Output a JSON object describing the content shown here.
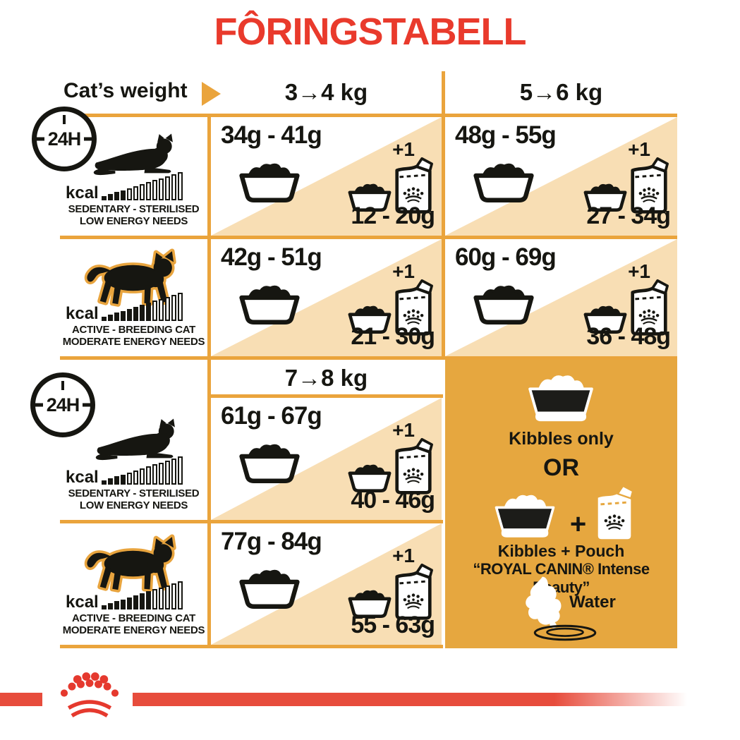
{
  "title": "FÔRINGSTABELL",
  "header": {
    "label": "Cat’s weight",
    "cols": [
      "3→4 kg",
      "5→6 kg",
      "7→8 kg"
    ]
  },
  "clock_label": "24H",
  "profiles": {
    "sedentary": {
      "kcal": "kcal",
      "line1": "SEDENTARY - STERILISED",
      "line2": "LOW ENERGY NEEDS",
      "bars": {
        "total": 13,
        "filled": 4
      }
    },
    "active": {
      "kcal": "kcal",
      "line1": "ACTIVE - BREEDING CAT",
      "line2": "MODERATE ENERGY NEEDS",
      "bars": {
        "total": 13,
        "filled": 8
      }
    }
  },
  "cells": {
    "r1c1": {
      "kibbles": "34g - 41g",
      "plus": "+1",
      "mix": "12 - 20g"
    },
    "r1c2": {
      "kibbles": "48g - 55g",
      "plus": "+1",
      "mix": "27 - 34g"
    },
    "r2c1": {
      "kibbles": "42g - 51g",
      "plus": "+1",
      "mix": "21 - 30g"
    },
    "r2c2": {
      "kibbles": "60g - 69g",
      "plus": "+1",
      "mix": "36 - 48g"
    },
    "r3c1": {
      "kibbles": "61g - 67g",
      "plus": "+1",
      "mix": "40 - 46g"
    },
    "r4c1": {
      "kibbles": "77g - 84g",
      "plus": "+1",
      "mix": "55 - 63g"
    }
  },
  "panel": {
    "kibbles_only": "Kibbles only",
    "or": "OR",
    "plus": "+",
    "mix_line1": "Kibbles + Pouch",
    "mix_line2": "“ROYAL CANIN® Intense Beauty”",
    "water": "Water"
  },
  "colors": {
    "red": "#e93a2c",
    "gold_line": "#eaa43c",
    "tan_fill": "#f8deb4",
    "panel_gold": "#e6a73f",
    "ink": "#161611"
  },
  "chart_data": {
    "type": "table",
    "title": "FÔRINGSTABELL",
    "col_headers": [
      "3→4 kg",
      "5→6 kg",
      "7→8 kg"
    ],
    "row_headers": [
      "SEDENTARY - STERILISED / LOW ENERGY NEEDS",
      "ACTIVE - BREEDING CAT / MODERATE ENERGY NEEDS"
    ],
    "kibbles_only_per_24h": [
      [
        "34g - 41g",
        "48g - 55g",
        "61g - 67g"
      ],
      [
        "42g - 51g",
        "60g - 69g",
        "77g - 84g"
      ]
    ],
    "kibbles_plus_1_pouch_per_24h": [
      [
        "12 - 20g",
        "27 - 34g",
        "40 - 46g"
      ],
      [
        "21 - 30g",
        "36 - 48g",
        "55 - 63g"
      ]
    ],
    "legend": [
      "Kibbles only",
      "OR",
      "Kibbles + Pouch “ROYAL CANIN® Intense Beauty”",
      "Water"
    ]
  }
}
